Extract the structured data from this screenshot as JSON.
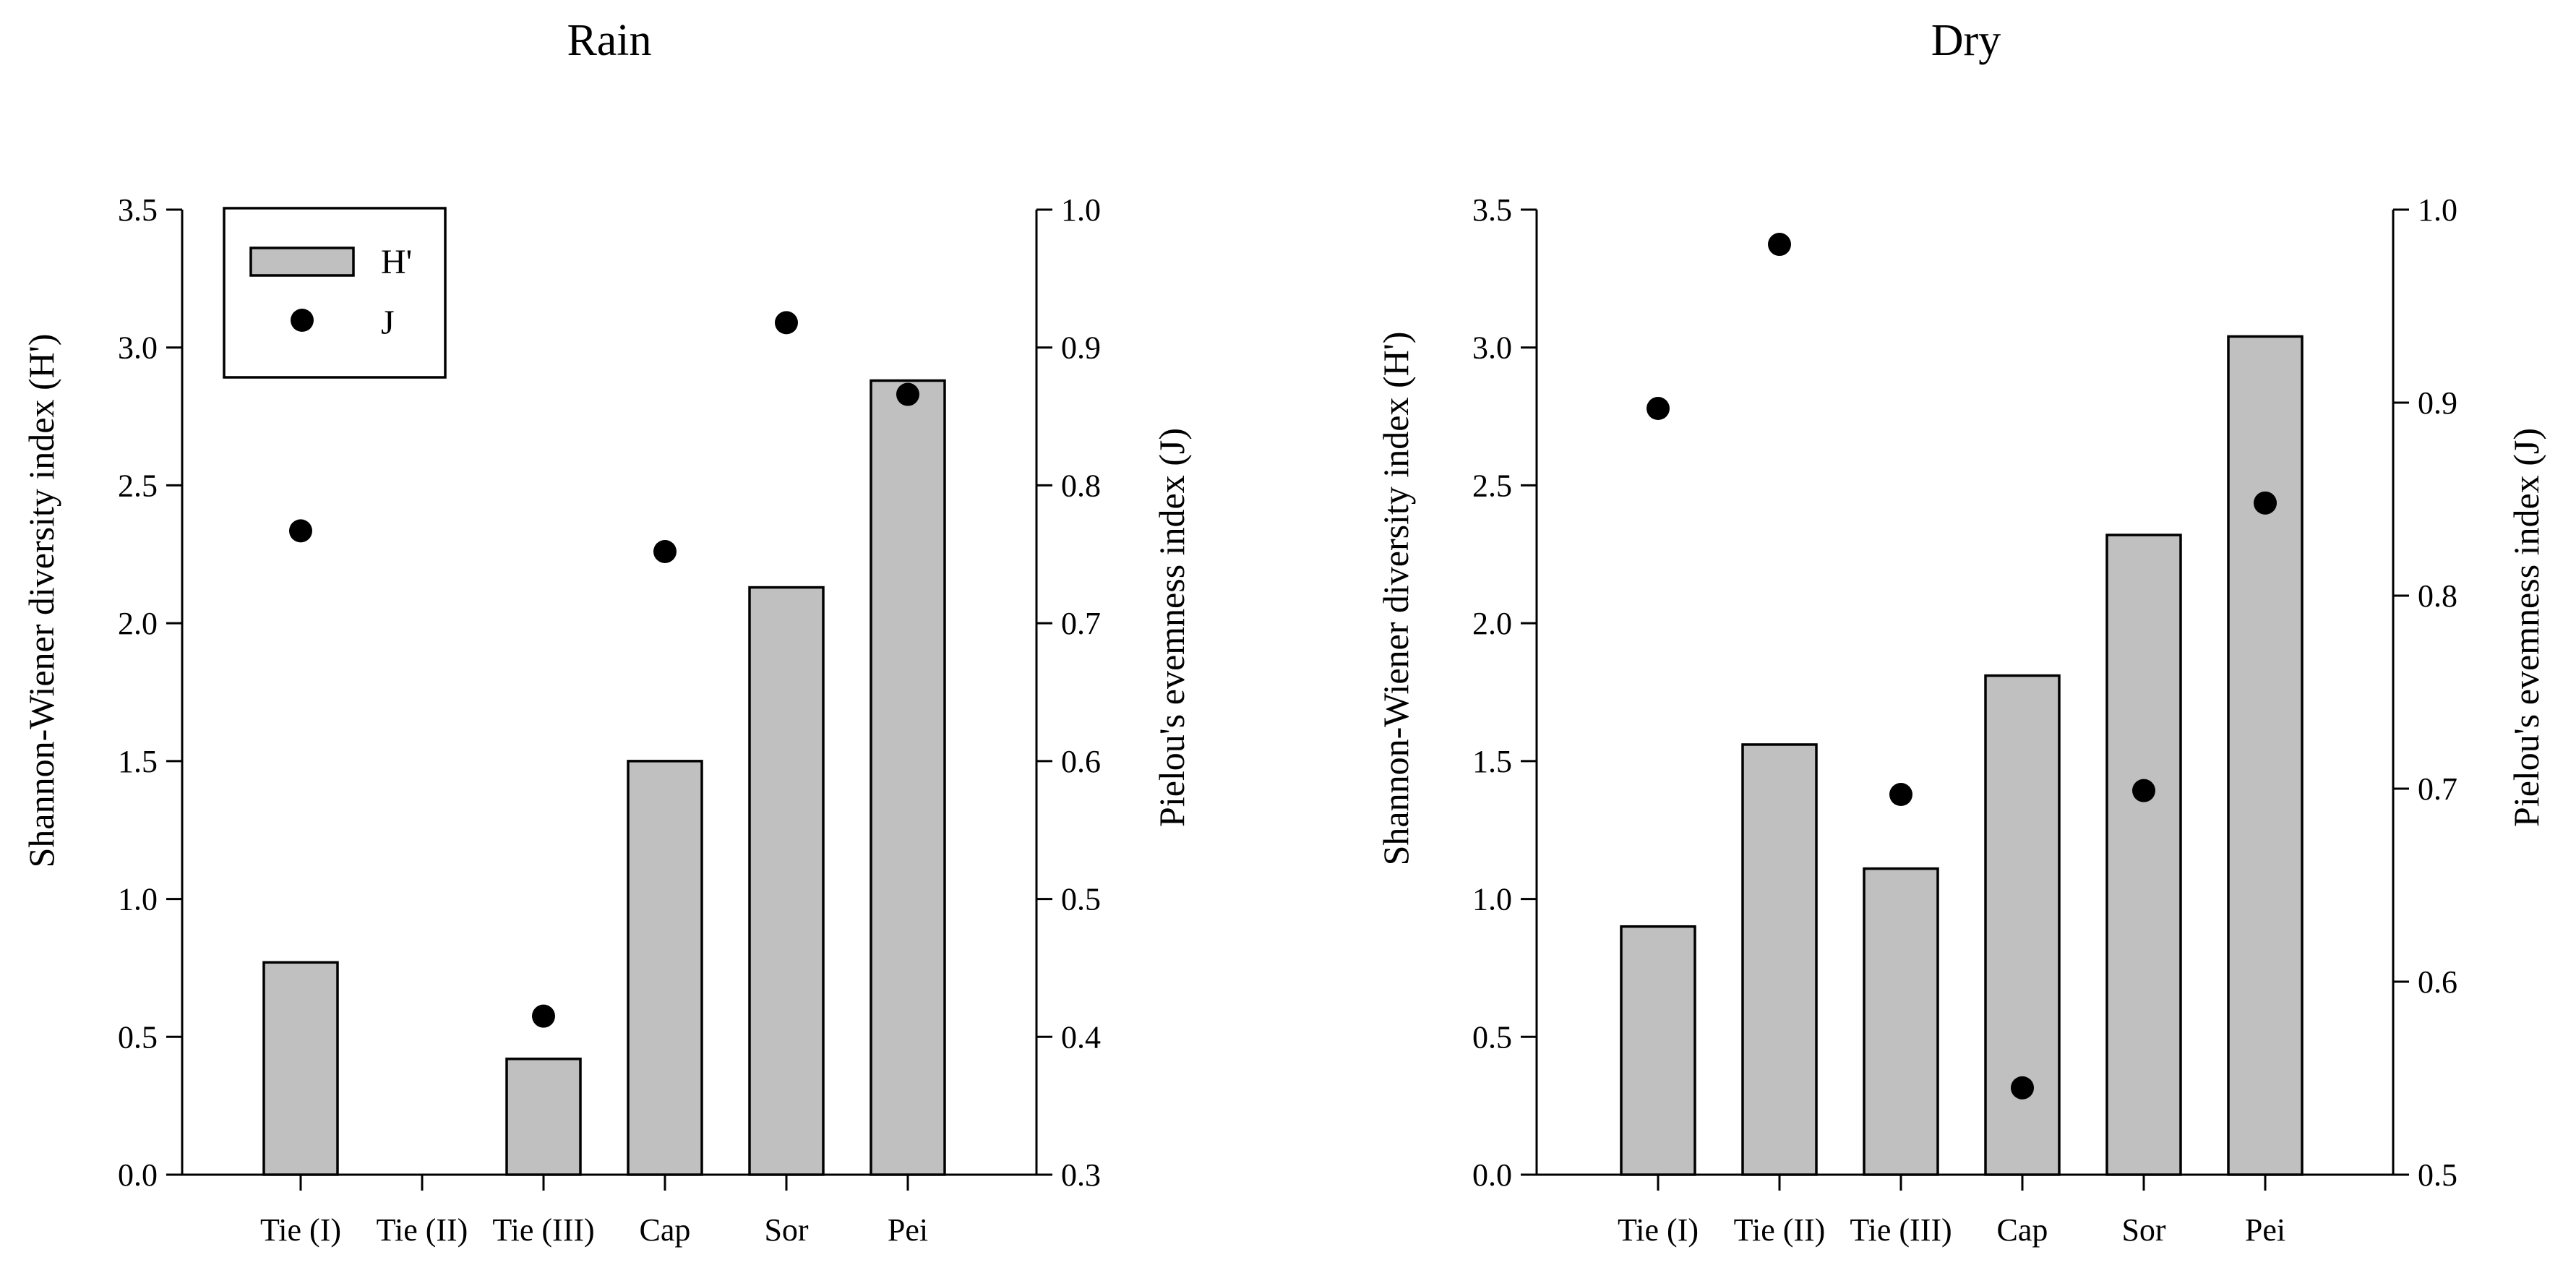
{
  "chart_data": [
    {
      "type": "bar",
      "title": "Rain",
      "categories": [
        "Tie (I)",
        "Tie (II)",
        "Tie (III)",
        "Cap",
        "Sor",
        "Pei"
      ],
      "series": [
        {
          "name": "H'",
          "type": "bar",
          "axis": "left",
          "values": [
            0.77,
            null,
            0.42,
            1.5,
            2.13,
            2.88
          ]
        },
        {
          "name": "J",
          "type": "scatter",
          "axis": "right",
          "values": [
            0.767,
            null,
            0.415,
            0.752,
            0.918,
            0.866
          ]
        }
      ],
      "ylabel": "Shannon-Wiener diversity index (H')",
      "ylim": [
        0,
        3.5
      ],
      "yticks": [
        "0.0",
        "0.5",
        "1.0",
        "1.5",
        "2.0",
        "2.5",
        "3.0",
        "3.5"
      ],
      "y2label": "Pielou's evemness index (J)",
      "y2lim": [
        0.3,
        1.0
      ],
      "y2ticks": [
        "0.3",
        "0.4",
        "0.5",
        "0.6",
        "0.7",
        "0.8",
        "0.9",
        "1.0"
      ],
      "legend": {
        "position": "top-left",
        "entries": [
          "H'",
          "J"
        ]
      }
    },
    {
      "type": "bar",
      "title": "Dry",
      "categories": [
        "Tie (I)",
        "Tie (II)",
        "Tie (III)",
        "Cap",
        "Sor",
        "Pei"
      ],
      "series": [
        {
          "name": "H'",
          "type": "bar",
          "axis": "left",
          "values": [
            0.9,
            1.56,
            1.11,
            1.81,
            2.32,
            3.04
          ]
        },
        {
          "name": "J",
          "type": "scatter",
          "axis": "right",
          "values": [
            0.897,
            0.982,
            0.697,
            0.545,
            0.699,
            0.848
          ]
        }
      ],
      "ylabel": "Shannon-Wiener diversity index (H')",
      "ylim": [
        0,
        3.5
      ],
      "yticks": [
        "0.0",
        "0.5",
        "1.0",
        "1.5",
        "2.0",
        "2.5",
        "3.0",
        "3.5"
      ],
      "y2label": "Pielou's evemness index (J)",
      "y2lim": [
        0.5,
        1.0
      ],
      "y2ticks": [
        "0.5",
        "0.6",
        "0.7",
        "0.8",
        "0.9",
        "1.0"
      ],
      "legend": null
    }
  ]
}
